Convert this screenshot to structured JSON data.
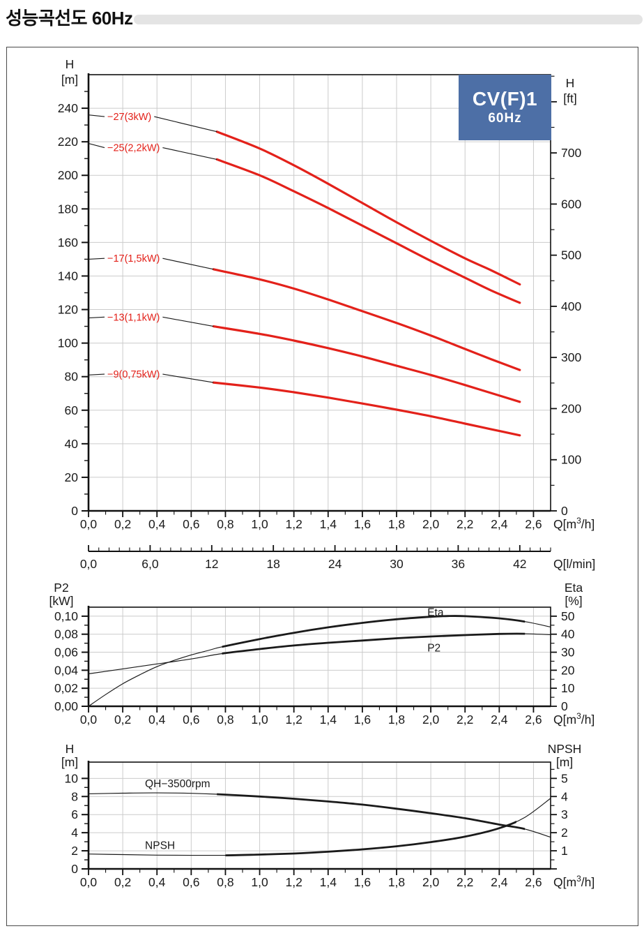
{
  "page": {
    "title": "성능곡선도 60Hz",
    "badge": {
      "model": "CV(F)1",
      "freq": "60Hz"
    }
  },
  "colors": {
    "curve_red": "#e3211a",
    "curve_black": "#1a1a1a",
    "grid": "#cbcbcb",
    "axis": "#111111",
    "badge_bg": "#4d6fa6",
    "title_rule": "#e4e4e4",
    "text": "#1a1a1a"
  },
  "chart_data": [
    {
      "id": "main",
      "type": "line",
      "x": {
        "min": 0,
        "max": 2.7,
        "major": 0.2,
        "minor": 0.1,
        "tick_labels": [
          "0,0",
          "0,2",
          "0,4",
          "0,6",
          "0,8",
          "1,0",
          "1,2",
          "1,4",
          "1,6",
          "1,8",
          "2,0",
          "2,2",
          "2,4",
          "2,6"
        ],
        "unit": {
          "pre": "Q[m",
          "sup": "3",
          "post": "/h]"
        }
      },
      "x2": {
        "unit": "Q[l/min]",
        "max_lmin": 45,
        "major": 6,
        "minor": 1,
        "tick_labels": [
          "0,0",
          "6,0",
          "12",
          "18",
          "24",
          "30",
          "36",
          "42"
        ],
        "lmin_per_m3h": 16.6667
      },
      "y_left": {
        "title": [
          "H",
          "[m]"
        ],
        "min": 0,
        "max": 260,
        "major": 20,
        "minor": 10
      },
      "y_right": {
        "title": [
          "H",
          "[ft]"
        ],
        "max_ft": 853,
        "major": 100,
        "minor": 50,
        "label_max": 700,
        "ft_per_m": 3.2808
      },
      "series": [
        {
          "label": "−27(3kW)",
          "axis": "l",
          "thin_to": 0.75,
          "label_q": 0.11,
          "label_v": 235,
          "points": [
            [
              0,
              236
            ],
            [
              0.2,
              234.5
            ],
            [
              0.4,
              232
            ],
            [
              0.6,
              229
            ],
            [
              0.75,
              226
            ],
            [
              1,
              216
            ],
            [
              1.2,
              206
            ],
            [
              1.4,
              195
            ],
            [
              1.6,
              183.5
            ],
            [
              1.8,
              172
            ],
            [
              2,
              161
            ],
            [
              2.2,
              150.5
            ],
            [
              2.35,
              143.5
            ],
            [
              2.52,
              135
            ]
          ]
        },
        {
          "label": "−25(2,2kW)",
          "axis": "l",
          "thin_to": 0.75,
          "label_q": 0.11,
          "label_v": 216.5,
          "points": [
            [
              0,
              219
            ],
            [
              0.2,
              217.5
            ],
            [
              0.4,
              215
            ],
            [
              0.6,
              212
            ],
            [
              0.75,
              209.5
            ],
            [
              1,
              200
            ],
            [
              1.2,
              190.5
            ],
            [
              1.4,
              180.5
            ],
            [
              1.6,
              170
            ],
            [
              1.8,
              159.5
            ],
            [
              2,
              149
            ],
            [
              2.2,
              139
            ],
            [
              2.35,
              131.5
            ],
            [
              2.52,
              124
            ]
          ]
        },
        {
          "label": "−17(1,5kW)",
          "axis": "l",
          "thin_to": 0.73,
          "label_q": 0.11,
          "label_v": 150.5,
          "points": [
            [
              0,
              150
            ],
            [
              0.2,
              149
            ],
            [
              0.4,
              147.5
            ],
            [
              0.6,
              145.5
            ],
            [
              0.73,
              144
            ],
            [
              1,
              138
            ],
            [
              1.2,
              132.5
            ],
            [
              1.4,
              126
            ],
            [
              1.6,
              119
            ],
            [
              1.8,
              112
            ],
            [
              2,
              104.5
            ],
            [
              2.2,
              96.5
            ],
            [
              2.35,
              90.5
            ],
            [
              2.52,
              84
            ]
          ]
        },
        {
          "label": "−13(1,1kW)",
          "axis": "l",
          "thin_to": 0.73,
          "label_q": 0.11,
          "label_v": 115.5,
          "points": [
            [
              0,
              115
            ],
            [
              0.2,
              114.3
            ],
            [
              0.4,
              113
            ],
            [
              0.6,
              111.3
            ],
            [
              0.73,
              110
            ],
            [
              1,
              105.5
            ],
            [
              1.2,
              101.5
            ],
            [
              1.4,
              97
            ],
            [
              1.6,
              92
            ],
            [
              1.8,
              86.5
            ],
            [
              2,
              81
            ],
            [
              2.2,
              75
            ],
            [
              2.35,
              70.3
            ],
            [
              2.52,
              65
            ]
          ]
        },
        {
          "label": "−9(0,75kW)",
          "axis": "l",
          "thin_to": 0.73,
          "label_q": 0.11,
          "label_v": 81.5,
          "points": [
            [
              0,
              81
            ],
            [
              0.2,
              80.3
            ],
            [
              0.4,
              79.2
            ],
            [
              0.6,
              77.7
            ],
            [
              0.73,
              76.5
            ],
            [
              1,
              73.5
            ],
            [
              1.2,
              70.7
            ],
            [
              1.4,
              67.5
            ],
            [
              1.6,
              64
            ],
            [
              1.8,
              60.3
            ],
            [
              2,
              56.4
            ],
            [
              2.2,
              52
            ],
            [
              2.35,
              48.7
            ],
            [
              2.52,
              45
            ]
          ]
        }
      ]
    },
    {
      "id": "p2eta",
      "type": "line",
      "x": {
        "min": 0,
        "max": 2.7,
        "major": 0.2,
        "minor": 0.1,
        "tick_labels": [
          "0,0",
          "0,2",
          "0,4",
          "0,6",
          "0,8",
          "1,0",
          "1,2",
          "1,4",
          "1,6",
          "1,8",
          "2,0",
          "2,2",
          "2,4",
          "2,6"
        ],
        "unit": {
          "pre": "Q[m",
          "sup": "3",
          "post": "/h]"
        }
      },
      "y_left": {
        "title": [
          "P2",
          "[kW]"
        ],
        "min": 0,
        "max": 0.11,
        "major": 0.02,
        "minor": 0.01,
        "tick_labels": [
          "0,00",
          "0,02",
          "0,04",
          "0,06",
          "0,08",
          "0,10"
        ]
      },
      "y_right": {
        "title": [
          "Eta",
          "[%]"
        ],
        "min": 0,
        "max": 55,
        "major": 10,
        "minor": 5
      },
      "series": [
        {
          "label": "Eta",
          "axis": "r",
          "thin_to": 0.78,
          "thick_to": 2.55,
          "label_q": 1.98,
          "label_v": 52,
          "points": [
            [
              0,
              0
            ],
            [
              0.1,
              6.5
            ],
            [
              0.2,
              12.5
            ],
            [
              0.3,
              17.5
            ],
            [
              0.4,
              22
            ],
            [
              0.5,
              25.5
            ],
            [
              0.6,
              28.5
            ],
            [
              0.7,
              31
            ],
            [
              0.78,
              33
            ],
            [
              1,
              37.3
            ],
            [
              1.2,
              40.8
            ],
            [
              1.4,
              43.8
            ],
            [
              1.6,
              46.3
            ],
            [
              1.8,
              48.3
            ],
            [
              2,
              49.7
            ],
            [
              2.1,
              50.1
            ],
            [
              2.2,
              50
            ],
            [
              2.4,
              48.8
            ],
            [
              2.55,
              47
            ],
            [
              2.7,
              44
            ]
          ]
        },
        {
          "label": "P2",
          "axis": "l",
          "thin_to": 0.78,
          "thick_to": 2.55,
          "label_q": 1.98,
          "label_v": 0.0645,
          "points": [
            [
              0,
              0.036
            ],
            [
              0.2,
              0.0415
            ],
            [
              0.4,
              0.047
            ],
            [
              0.6,
              0.0525
            ],
            [
              0.78,
              0.0585
            ],
            [
              1,
              0.0635
            ],
            [
              1.2,
              0.0675
            ],
            [
              1.4,
              0.0705
            ],
            [
              1.6,
              0.073
            ],
            [
              1.8,
              0.0755
            ],
            [
              2,
              0.0775
            ],
            [
              2.2,
              0.079
            ],
            [
              2.4,
              0.0803
            ],
            [
              2.55,
              0.0805
            ],
            [
              2.7,
              0.0795
            ]
          ]
        }
      ]
    },
    {
      "id": "qhnpsh",
      "type": "line",
      "x": {
        "min": 0,
        "max": 2.7,
        "major": 0.2,
        "minor": 0.1,
        "tick_labels": [
          "0,0",
          "0,2",
          "0,4",
          "0,6",
          "0,8",
          "1,0",
          "1,2",
          "1,4",
          "1,6",
          "1,8",
          "2,0",
          "2,2",
          "2,4",
          "2,6"
        ],
        "unit": {
          "pre": "Q[m",
          "sup": "3",
          "post": "/h]"
        }
      },
      "y_left": {
        "title": [
          "H",
          "[m]"
        ],
        "min": 0,
        "max": 11.8,
        "major": 2,
        "minor": 1
      },
      "y_right": {
        "title": [
          "NPSH",
          "[m]"
        ],
        "min": 0,
        "max": 5.9,
        "major": 1,
        "minor": 0.5,
        "label_min": 1
      },
      "series": [
        {
          "label": "QH−3500rpm",
          "axis": "l",
          "thin_to": 0.75,
          "thick_to": 2.55,
          "label_q": 0.33,
          "label_v": 9.4,
          "points": [
            [
              0,
              8.3
            ],
            [
              0.2,
              8.37
            ],
            [
              0.4,
              8.4
            ],
            [
              0.6,
              8.35
            ],
            [
              0.75,
              8.25
            ],
            [
              1,
              8.0
            ],
            [
              1.2,
              7.75
            ],
            [
              1.4,
              7.45
            ],
            [
              1.6,
              7.1
            ],
            [
              1.8,
              6.65
            ],
            [
              2,
              6.15
            ],
            [
              2.2,
              5.6
            ],
            [
              2.4,
              4.9
            ],
            [
              2.55,
              4.4
            ],
            [
              2.7,
              3.5
            ]
          ]
        },
        {
          "label": "NPSH",
          "axis": "r",
          "thin_to": 0.8,
          "thick_to": 2.5,
          "label_q": 0.33,
          "label_v": 1.3,
          "points": [
            [
              0,
              0.82
            ],
            [
              0.2,
              0.79
            ],
            [
              0.4,
              0.76
            ],
            [
              0.6,
              0.75
            ],
            [
              0.8,
              0.75
            ],
            [
              1,
              0.79
            ],
            [
              1.2,
              0.85
            ],
            [
              1.4,
              0.95
            ],
            [
              1.6,
              1.08
            ],
            [
              1.8,
              1.25
            ],
            [
              2,
              1.48
            ],
            [
              2.2,
              1.78
            ],
            [
              2.4,
              2.25
            ],
            [
              2.55,
              2.85
            ],
            [
              2.7,
              3.9
            ]
          ]
        }
      ]
    }
  ]
}
